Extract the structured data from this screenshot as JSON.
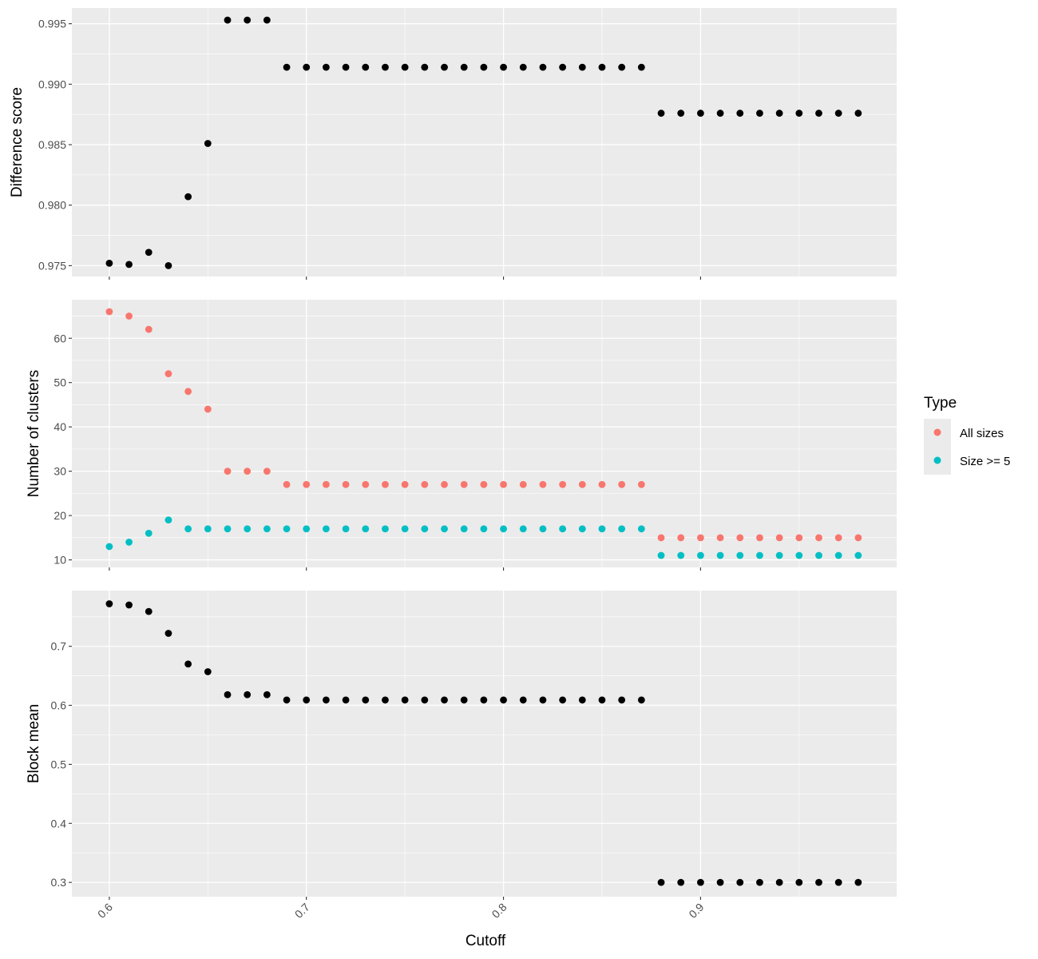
{
  "chart_data": {
    "type": "scatter",
    "xlabel": "Cutoff",
    "x_ticks": [
      "0.6",
      "0.7",
      "0.8",
      "0.9"
    ],
    "x_tick_values": [
      0.6,
      0.7,
      0.8,
      0.9
    ],
    "xlim": [
      0.581,
      0.9995
    ],
    "x": [
      0.6,
      0.61,
      0.62,
      0.63,
      0.64,
      0.65,
      0.66,
      0.67,
      0.68,
      0.69,
      0.7,
      0.71,
      0.72,
      0.73,
      0.74,
      0.75,
      0.76,
      0.77,
      0.78,
      0.79,
      0.8,
      0.81,
      0.82,
      0.83,
      0.84,
      0.85,
      0.86,
      0.87,
      0.88,
      0.89,
      0.9,
      0.91,
      0.92,
      0.93,
      0.94,
      0.95,
      0.96,
      0.97,
      0.98
    ],
    "panels": [
      {
        "ylabel": "Difference score",
        "ylim": [
          0.9741,
          0.9963
        ],
        "y_ticks": [
          "0.975",
          "0.980",
          "0.985",
          "0.990",
          "0.995"
        ],
        "y_tick_values": [
          0.975,
          0.98,
          0.985,
          0.99,
          0.995
        ],
        "series": [
          {
            "color": "#000000",
            "values": [
              0.9752,
              0.9751,
              0.9761,
              0.975,
              0.9807,
              0.9851,
              0.9953,
              0.9953,
              0.9953,
              0.9914,
              0.9914,
              0.9914,
              0.9914,
              0.9914,
              0.9914,
              0.9914,
              0.9914,
              0.9914,
              0.9914,
              0.9914,
              0.9914,
              0.9914,
              0.9914,
              0.9914,
              0.9914,
              0.9914,
              0.9914,
              0.9914,
              0.9876,
              0.9876,
              0.9876,
              0.9876,
              0.9876,
              0.9876,
              0.9876,
              0.9876,
              0.9876,
              0.9876,
              0.9876
            ]
          }
        ]
      },
      {
        "ylabel": "Number of clusters",
        "ylim": [
          8.3,
          68.7
        ],
        "y_ticks": [
          "10",
          "20",
          "30",
          "40",
          "50",
          "60"
        ],
        "y_tick_values": [
          10,
          20,
          30,
          40,
          50,
          60
        ],
        "series": [
          {
            "name": "All sizes",
            "color": "#F8766D",
            "values": [
              66,
              65,
              62,
              52,
              48,
              44,
              30,
              30,
              30,
              27,
              27,
              27,
              27,
              27,
              27,
              27,
              27,
              27,
              27,
              27,
              27,
              27,
              27,
              27,
              27,
              27,
              27,
              27,
              15,
              15,
              15,
              15,
              15,
              15,
              15,
              15,
              15,
              15,
              15
            ]
          },
          {
            "name": "Size >= 5",
            "color": "#00BFC4",
            "values": [
              13,
              14,
              16,
              19,
              17,
              17,
              17,
              17,
              17,
              17,
              17,
              17,
              17,
              17,
              17,
              17,
              17,
              17,
              17,
              17,
              17,
              17,
              17,
              17,
              17,
              17,
              17,
              17,
              11,
              11,
              11,
              11,
              11,
              11,
              11,
              11,
              11,
              11,
              11
            ]
          }
        ]
      },
      {
        "ylabel": "Block mean",
        "ylim": [
          0.2758,
          0.7944
        ],
        "y_ticks": [
          "0.3",
          "0.4",
          "0.5",
          "0.6",
          "0.7"
        ],
        "y_tick_values": [
          0.3,
          0.4,
          0.5,
          0.6,
          0.7
        ],
        "series": [
          {
            "color": "#000000",
            "values": [
              0.772,
              0.77,
              0.759,
              0.722,
              0.67,
              0.657,
              0.618,
              0.618,
              0.618,
              0.609,
              0.609,
              0.609,
              0.609,
              0.609,
              0.609,
              0.609,
              0.609,
              0.609,
              0.609,
              0.609,
              0.609,
              0.609,
              0.609,
              0.609,
              0.609,
              0.609,
              0.609,
              0.609,
              0.3,
              0.3,
              0.3,
              0.3,
              0.3,
              0.3,
              0.3,
              0.3,
              0.3,
              0.3,
              0.3
            ]
          }
        ]
      }
    ],
    "legend": {
      "title": "Type",
      "placement": "right",
      "items": [
        {
          "label": "All sizes",
          "color": "#F8766D"
        },
        {
          "label": "Size >= 5",
          "color": "#00BFC4"
        }
      ]
    },
    "grid": true,
    "panel_background": "#EBEBEB"
  }
}
